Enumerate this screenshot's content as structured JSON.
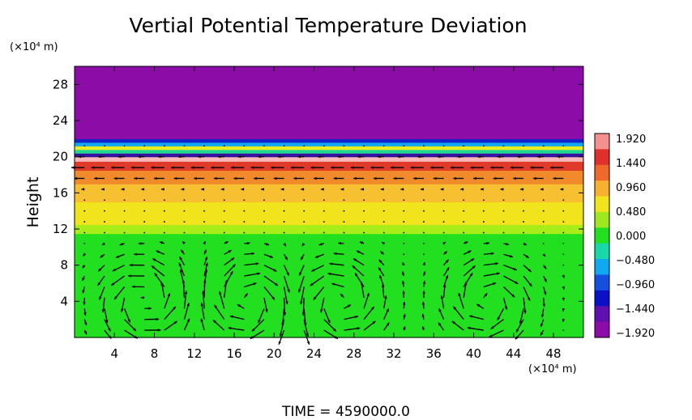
{
  "chart_data": {
    "type": "heatmap",
    "title": "Vertial Potential Temperature Deviation",
    "ylabel": "Height",
    "x_unit": "(×10⁴ m)",
    "y_unit": "(×10⁴ m)",
    "footer": "TIME = 4590000.0",
    "xlim": [
      0,
      51
    ],
    "ylim": [
      0,
      30
    ],
    "x_ticks": [
      4,
      8,
      12,
      16,
      20,
      24,
      28,
      32,
      36,
      40,
      44,
      48
    ],
    "y_ticks": [
      4,
      8,
      12,
      16,
      20,
      24,
      28
    ],
    "colorbar": {
      "ticks": [
        "1.920",
        "1.440",
        "0.960",
        "0.480",
        "0.000",
        "−0.480",
        "−0.960",
        "−1.440",
        "−1.920"
      ],
      "colors": [
        "#f49090",
        "#e0302c",
        "#ef6a2a",
        "#f7b030",
        "#f2e41c",
        "#9ee820",
        "#22e020",
        "#18d8a8",
        "#10a8f0",
        "#1450e0",
        "#0a10c8",
        "#6010b0",
        "#8c0ca8"
      ]
    },
    "layers": [
      {
        "y0": 0.0,
        "y1": 11.5,
        "value": 0.0,
        "color": "#22e020"
      },
      {
        "y0": 11.5,
        "y1": 12.5,
        "value": 0.3,
        "color": "#a8ec18"
      },
      {
        "y0": 12.5,
        "y1": 15.0,
        "value": 0.7,
        "color": "#f2e41c"
      },
      {
        "y0": 15.0,
        "y1": 17.0,
        "value": 1.0,
        "color": "#f7c030"
      },
      {
        "y0": 17.0,
        "y1": 18.5,
        "value": 1.3,
        "color": "#f08a2a"
      },
      {
        "y0": 18.5,
        "y1": 19.5,
        "value": 1.6,
        "color": "#e03a2a"
      },
      {
        "y0": 19.5,
        "y1": 20.0,
        "value": 1.9,
        "color": "#f8b8b8"
      },
      {
        "y0": 20.0,
        "y1": 20.4,
        "value": -1.9,
        "color": "#3a10a0"
      },
      {
        "y0": 20.4,
        "y1": 20.8,
        "value": 0.1,
        "color": "#20d890"
      },
      {
        "y0": 20.8,
        "y1": 21.2,
        "value": 0.5,
        "color": "#e8ec20"
      },
      {
        "y0": 21.2,
        "y1": 21.6,
        "value": -0.8,
        "color": "#10a8f0"
      },
      {
        "y0": 21.6,
        "y1": 22.0,
        "value": -1.6,
        "color": "#1420c8"
      },
      {
        "y0": 22.0,
        "y1": 30.0,
        "value": -1.92,
        "color": "#8c0ca8"
      }
    ],
    "vector_field": {
      "x_spacing": 2,
      "y_spacing": 1.2,
      "vortices": [
        {
          "x": 7,
          "y": 4,
          "spin": 1
        },
        {
          "x": 17.5,
          "y": 4,
          "spin": -1
        },
        {
          "x": 26.5,
          "y": 4,
          "spin": 1
        },
        {
          "x": 41.5,
          "y": 4,
          "spin": -1
        }
      ]
    }
  }
}
